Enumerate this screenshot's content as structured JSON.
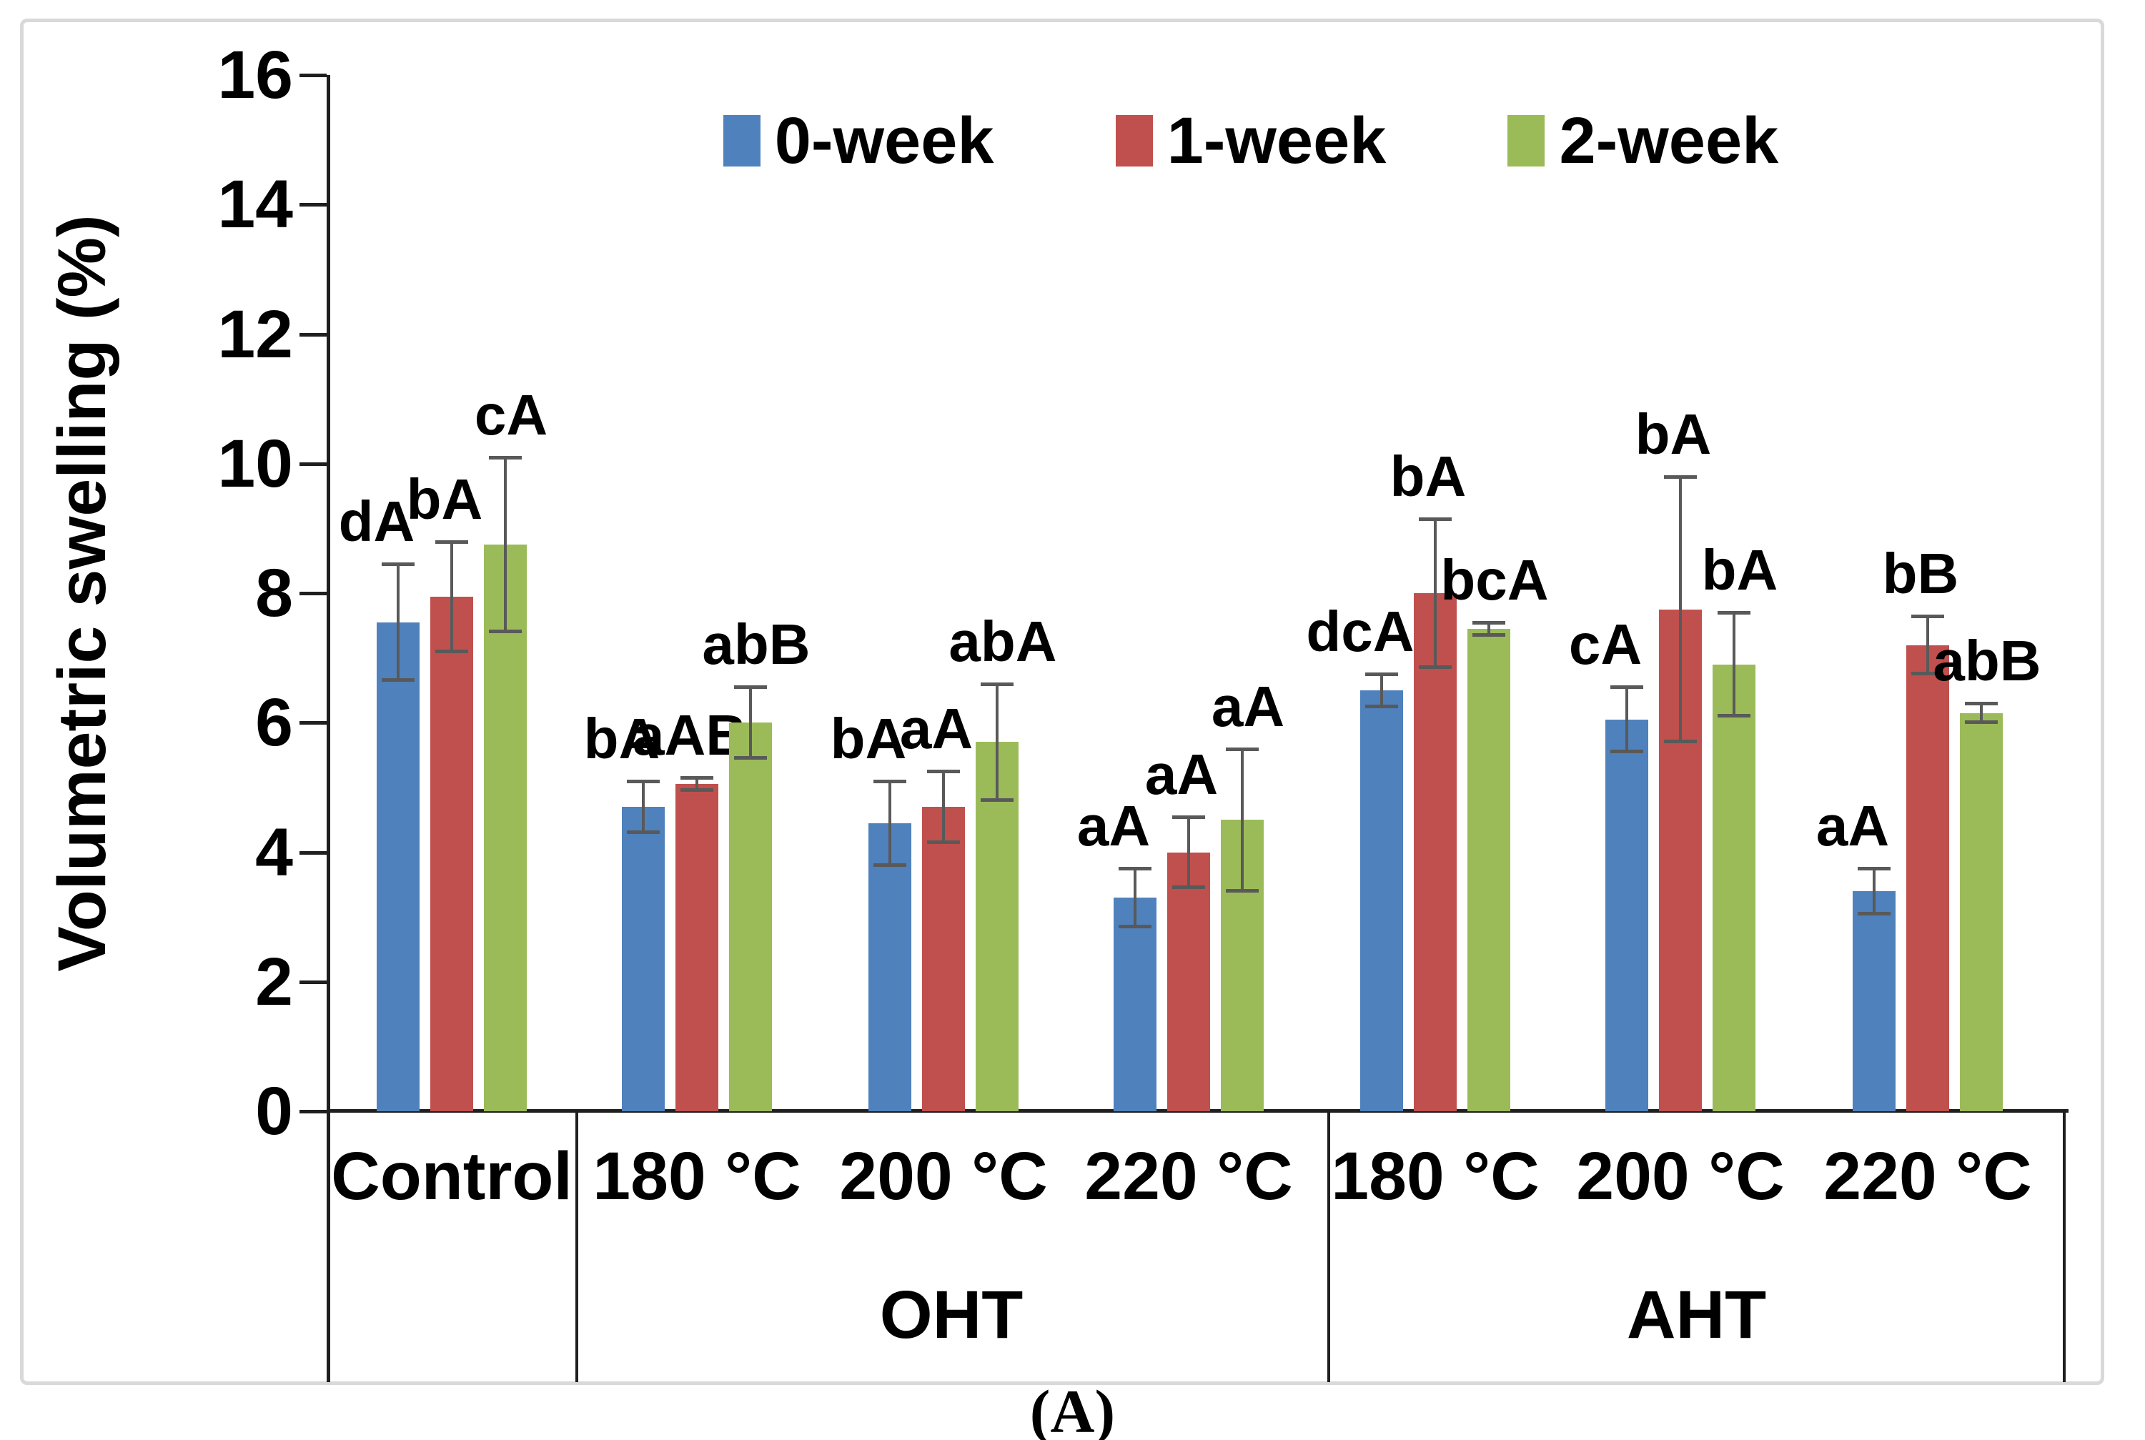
{
  "figure": {
    "caption": "(A)"
  },
  "chart_data": {
    "type": "bar",
    "title": "",
    "xlabel": "",
    "ylabel": "Volumetric swelling (%)",
    "ylim": [
      0,
      16
    ],
    "yticks": [
      0,
      2,
      4,
      6,
      8,
      10,
      12,
      14,
      16
    ],
    "grid": false,
    "legend_position": "top-center",
    "series_names": [
      "0-week",
      "1-week",
      "2-week"
    ],
    "series_colors": [
      "#4F81BD",
      "#C0504D",
      "#9BBB59"
    ],
    "error_bar_color": "#595959",
    "categories": [
      "Control",
      "180 °C",
      "200 °C",
      "220 °C",
      "180 °C",
      "200 °C",
      "220 °C"
    ],
    "sections": [
      {
        "label": "OHT",
        "first_group": 1,
        "last_group": 3
      },
      {
        "label": "AHT",
        "first_group": 4,
        "last_group": 6
      }
    ],
    "groups": [
      {
        "category": "Control",
        "section": "",
        "bars": [
          {
            "series": "0-week",
            "value": 7.55,
            "error": 0.9,
            "label": "dA"
          },
          {
            "series": "1-week",
            "value": 7.95,
            "error": 0.85,
            "label": "bA"
          },
          {
            "series": "2-week",
            "value": 8.75,
            "error": 1.35,
            "label": "cA"
          }
        ]
      },
      {
        "category": "180 °C",
        "section": "OHT",
        "bars": [
          {
            "series": "0-week",
            "value": 4.7,
            "error": 0.4,
            "label": "bA"
          },
          {
            "series": "1-week",
            "value": 5.05,
            "error": 0.1,
            "label": "aAB"
          },
          {
            "series": "2-week",
            "value": 6.0,
            "error": 0.55,
            "label": "abB"
          }
        ]
      },
      {
        "category": "200 °C",
        "section": "OHT",
        "bars": [
          {
            "series": "0-week",
            "value": 4.45,
            "error": 0.65,
            "label": "bA"
          },
          {
            "series": "1-week",
            "value": 4.7,
            "error": 0.55,
            "label": "aA"
          },
          {
            "series": "2-week",
            "value": 5.7,
            "error": 0.9,
            "label": "abA"
          }
        ]
      },
      {
        "category": "220 °C",
        "section": "OHT",
        "bars": [
          {
            "series": "0-week",
            "value": 3.3,
            "error": 0.45,
            "label": "aA"
          },
          {
            "series": "1-week",
            "value": 4.0,
            "error": 0.55,
            "label": "aA"
          },
          {
            "series": "2-week",
            "value": 4.5,
            "error": 1.1,
            "label": "aA"
          }
        ]
      },
      {
        "category": "180 °C",
        "section": "AHT",
        "bars": [
          {
            "series": "0-week",
            "value": 6.5,
            "error": 0.25,
            "label": "dcA"
          },
          {
            "series": "1-week",
            "value": 8.0,
            "error": 1.15,
            "label": "bA"
          },
          {
            "series": "2-week",
            "value": 7.45,
            "error": 0.1,
            "label": "bcA"
          }
        ]
      },
      {
        "category": "200 °C",
        "section": "AHT",
        "bars": [
          {
            "series": "0-week",
            "value": 6.05,
            "error": 0.5,
            "label": "cA"
          },
          {
            "series": "1-week",
            "value": 7.75,
            "error": 2.05,
            "label": "bA"
          },
          {
            "series": "2-week",
            "value": 6.9,
            "error": 0.8,
            "label": "bA"
          }
        ]
      },
      {
        "category": "220 °C",
        "section": "AHT",
        "bars": [
          {
            "series": "0-week",
            "value": 3.4,
            "error": 0.35,
            "label": "aA"
          },
          {
            "series": "1-week",
            "value": 7.2,
            "error": 0.45,
            "label": "bB"
          },
          {
            "series": "2-week",
            "value": 6.15,
            "error": 0.15,
            "label": "abB"
          }
        ]
      }
    ]
  }
}
